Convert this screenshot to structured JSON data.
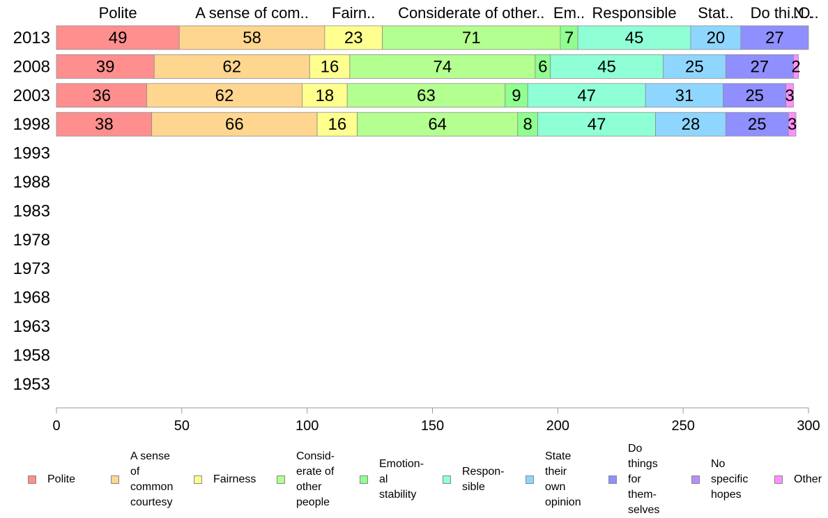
{
  "chart_data": {
    "type": "bar",
    "orientation": "horizontal",
    "stacked": true,
    "categories": [
      "2013",
      "2008",
      "2003",
      "1998",
      "1993",
      "1988",
      "1983",
      "1978",
      "1973",
      "1968",
      "1963",
      "1958",
      "1953"
    ],
    "series": [
      {
        "name": "Polite",
        "top_label": "Polite",
        "color": "#ff8f8f",
        "values": [
          49,
          39,
          36,
          38,
          null,
          null,
          null,
          null,
          null,
          null,
          null,
          null,
          null
        ]
      },
      {
        "name": "A sense of common courtesy",
        "top_label": "A sense of com..",
        "color": "#ffd68f",
        "values": [
          58,
          62,
          62,
          66,
          null,
          null,
          null,
          null,
          null,
          null,
          null,
          null,
          null
        ]
      },
      {
        "name": "Fairness",
        "top_label": "Fairn..",
        "color": "#ffff8f",
        "values": [
          23,
          16,
          18,
          16,
          null,
          null,
          null,
          null,
          null,
          null,
          null,
          null,
          null
        ]
      },
      {
        "name": "Considerate of other people",
        "top_label": "Considerate of other..",
        "color": "#b3ff8f",
        "values": [
          71,
          74,
          63,
          64,
          null,
          null,
          null,
          null,
          null,
          null,
          null,
          null,
          null
        ]
      },
      {
        "name": "Emotional stability",
        "top_label": "Em..",
        "color": "#8fff8f",
        "values": [
          7,
          6,
          9,
          8,
          null,
          null,
          null,
          null,
          null,
          null,
          null,
          null,
          null
        ]
      },
      {
        "name": "Responsible",
        "top_label": "Responsible",
        "color": "#8fffd6",
        "values": [
          45,
          45,
          47,
          47,
          null,
          null,
          null,
          null,
          null,
          null,
          null,
          null,
          null
        ]
      },
      {
        "name": "State their own opinion",
        "top_label": "Stat..",
        "color": "#8fd6ff",
        "values": [
          20,
          25,
          31,
          28,
          null,
          null,
          null,
          null,
          null,
          null,
          null,
          null,
          null
        ]
      },
      {
        "name": "Do things for themselves",
        "top_label": "Do thi..",
        "color": "#8f8fff",
        "values": [
          27,
          27,
          25,
          25,
          null,
          null,
          null,
          null,
          null,
          null,
          null,
          null,
          null
        ]
      },
      {
        "name": "No specific hopes",
        "top_label": "N..",
        "color": "#b38fff",
        "values": [
          null,
          null,
          null,
          null,
          null,
          null,
          null,
          null,
          null,
          null,
          null,
          null,
          null
        ]
      },
      {
        "name": "Other",
        "top_label": "O..",
        "color": "#ff8fff",
        "values": [
          null,
          2,
          3,
          3,
          null,
          null,
          null,
          null,
          null,
          null,
          null,
          null,
          null
        ]
      }
    ],
    "data_labels": [
      [
        "49",
        "58",
        "23",
        "71",
        "7",
        "45",
        "20",
        "27",
        "",
        ""
      ],
      [
        "39",
        "62",
        "16",
        "74",
        "6",
        "45",
        "25",
        "27",
        "",
        "2"
      ],
      [
        "36",
        "62",
        "18",
        "63",
        "9",
        "47",
        "31",
        "25",
        "",
        "3"
      ],
      [
        "38",
        "66",
        "16",
        "64",
        "8",
        "47",
        "28",
        "25",
        "",
        "3"
      ]
    ],
    "xlim": [
      0,
      300
    ],
    "x_ticks": [
      0,
      50,
      100,
      150,
      200,
      250,
      300
    ],
    "xlabel": "",
    "ylabel": "",
    "title": "",
    "grid": false,
    "legend_position": "bottom",
    "legend_labels": [
      "Polite",
      "A sense\nof\ncommon\ncourtesy",
      "Fairness",
      "Consid-\nerate of\nother\npeople",
      "Emotion-\nal\nstability",
      "Respon-\nsible",
      "State\ntheir\nown\nopinion",
      "Do\nthings\nfor\nthem-\nselves",
      "No\nspecific\nhopes",
      "Other"
    ]
  }
}
